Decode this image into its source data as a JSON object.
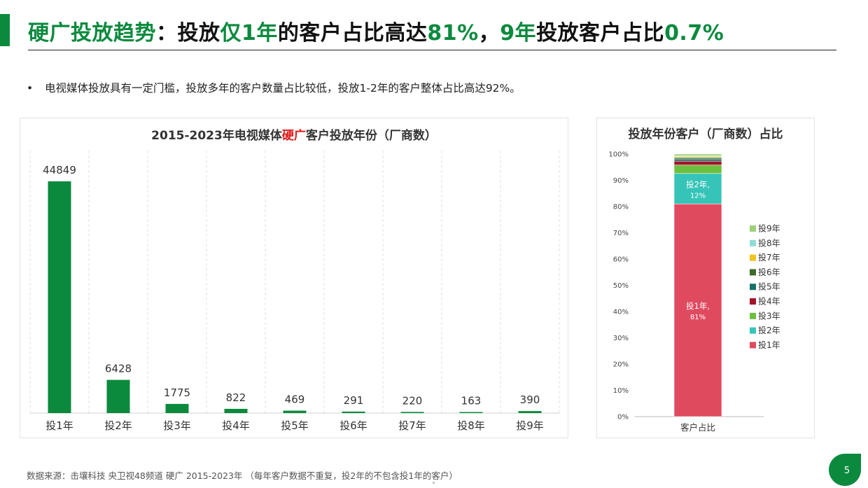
{
  "title": {
    "p1": "硬广投放趋势",
    "p2": "：投放",
    "p3": "仅1年",
    "p4": "的客户占比高达",
    "p5": "81%",
    "p6": "，",
    "p7": "9年",
    "p8": "投放客户占比",
    "p9": "0.7%"
  },
  "bullet": {
    "symbol": "•",
    "text": "电视媒体投放具有一定门槛，投放多年的客户数量占比较低，投放1-2年的客户整体占比高达92%。"
  },
  "chart_data": [
    {
      "type": "bar",
      "title_parts": [
        "2015-2023年电视媒体",
        "硬广",
        "客户投放年份（厂商数）"
      ],
      "categories": [
        "投1年",
        "投2年",
        "投3年",
        "投4年",
        "投5年",
        "投6年",
        "投7年",
        "投8年",
        "投9年"
      ],
      "values": [
        44849,
        6428,
        1775,
        822,
        469,
        291,
        220,
        163,
        390
      ],
      "ylim": [
        0,
        50000
      ],
      "grid": "vertical-dashed",
      "color": "#0b8a3e"
    },
    {
      "type": "bar",
      "stacked": true,
      "title": "投放年份客户（厂商数）占比",
      "categories": [
        "客户占比"
      ],
      "yticks": [
        "0%",
        "10%",
        "20%",
        "30%",
        "40%",
        "50%",
        "60%",
        "70%",
        "80%",
        "90%",
        "100%"
      ],
      "ylim": [
        0,
        100
      ],
      "series": [
        {
          "name": "投1年",
          "value": 81.0,
          "color": "#e04a5f",
          "label": [
            "投1年,",
            "81%"
          ]
        },
        {
          "name": "投2年",
          "value": 11.6,
          "color": "#36c4b8",
          "label": [
            "投2年,",
            "12%"
          ]
        },
        {
          "name": "投3年",
          "value": 3.2,
          "color": "#6cbf3f"
        },
        {
          "name": "投4年",
          "value": 1.5,
          "color": "#a3142a"
        },
        {
          "name": "投5年",
          "value": 0.8,
          "color": "#17706a"
        },
        {
          "name": "投6年",
          "value": 0.5,
          "color": "#3f6b2a"
        },
        {
          "name": "投7年",
          "value": 0.4,
          "color": "#f4c21f"
        },
        {
          "name": "投8年",
          "value": 0.3,
          "color": "#8fdcd2"
        },
        {
          "name": "投9年",
          "value": 0.7,
          "color": "#9fd07a"
        }
      ],
      "legend": "right"
    }
  ],
  "footnote": "数据来源：击壤科技 央卫视48频道 硬广 2015-2023年 （每年客户数据不重复，投2年的不包含投1年的客户）",
  "page_number": "5"
}
